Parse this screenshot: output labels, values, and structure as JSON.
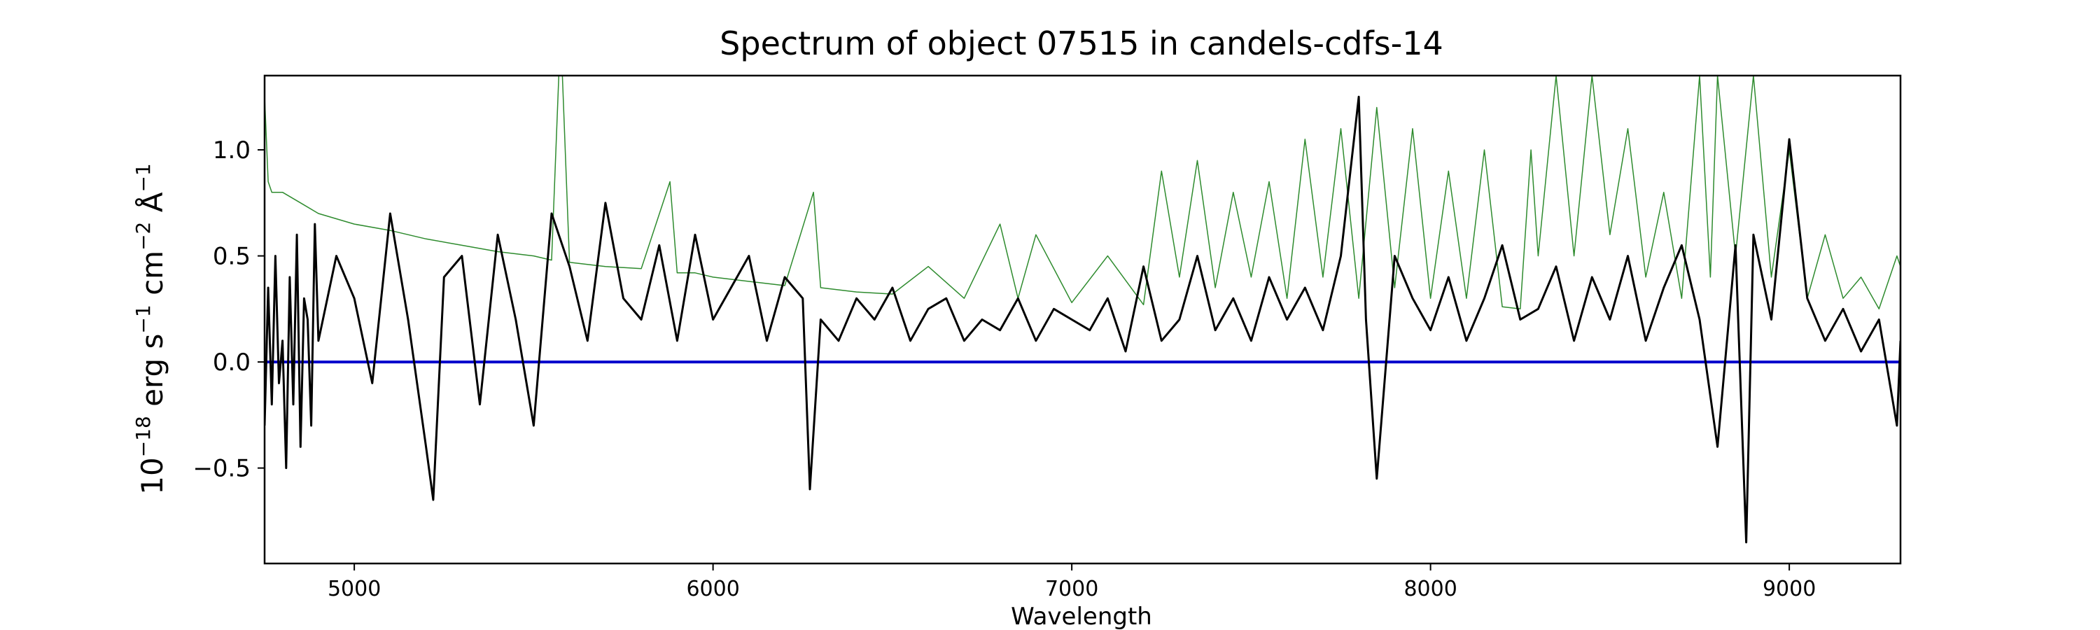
{
  "chart_data": {
    "type": "line",
    "title": "Spectrum of object 07515 in candels-cdfs-14",
    "xlabel": "Wavelength",
    "ylabel": {
      "prefix": "10",
      "prefix_sup": "−18",
      "erg": " erg s",
      "s_sup": "−1",
      "cm": " cm",
      "cm_sup": "−2",
      "ang": " Å",
      "ang_sup": "−1"
    },
    "xlim": [
      4750,
      9310
    ],
    "ylim": [
      -0.95,
      1.35
    ],
    "xticks": [
      5000,
      6000,
      7000,
      8000,
      9000
    ],
    "yticks": [
      -0.5,
      0.0,
      0.5,
      1.0
    ],
    "ytick_labels": [
      "−0.5",
      "0.0",
      "0.5",
      "1.0"
    ],
    "grid": false,
    "legend": "none",
    "colors": {
      "flux": "#000000",
      "noise": "#2e8b2e",
      "zero": "#0000cc"
    },
    "zero_line": 0.0,
    "series": [
      {
        "role": "flux",
        "x": [
          4750,
          4760,
          4770,
          4780,
          4790,
          4800,
          4810,
          4820,
          4830,
          4840,
          4850,
          4860,
          4870,
          4880,
          4890,
          4900,
          4950,
          5000,
          5050,
          5100,
          5150,
          5200,
          5220,
          5250,
          5300,
          5350,
          5400,
          5450,
          5500,
          5550,
          5600,
          5650,
          5700,
          5750,
          5800,
          5850,
          5900,
          5950,
          6000,
          6050,
          6100,
          6150,
          6200,
          6250,
          6270,
          6300,
          6350,
          6400,
          6450,
          6500,
          6550,
          6600,
          6650,
          6700,
          6750,
          6800,
          6850,
          6900,
          6950,
          7000,
          7050,
          7100,
          7150,
          7200,
          7250,
          7300,
          7350,
          7400,
          7450,
          7500,
          7550,
          7600,
          7650,
          7700,
          7750,
          7800,
          7820,
          7850,
          7900,
          7950,
          8000,
          8050,
          8100,
          8150,
          8200,
          8250,
          8300,
          8350,
          8400,
          8450,
          8500,
          8550,
          8600,
          8650,
          8700,
          8750,
          8800,
          8850,
          8880,
          8900,
          8950,
          9000,
          9050,
          9100,
          9150,
          9200,
          9250,
          9300,
          9310
        ],
        "y": [
          -0.3,
          0.35,
          -0.2,
          0.5,
          -0.1,
          0.1,
          -0.5,
          0.4,
          -0.2,
          0.6,
          -0.4,
          0.3,
          0.2,
          -0.3,
          0.65,
          0.1,
          0.5,
          0.3,
          -0.1,
          0.7,
          0.2,
          -0.4,
          -0.65,
          0.4,
          0.5,
          -0.2,
          0.6,
          0.2,
          -0.3,
          0.7,
          0.45,
          0.1,
          0.75,
          0.3,
          0.2,
          0.55,
          0.1,
          0.6,
          0.2,
          0.35,
          0.5,
          0.1,
          0.4,
          0.3,
          -0.6,
          0.2,
          0.1,
          0.3,
          0.2,
          0.35,
          0.1,
          0.25,
          0.3,
          0.1,
          0.2,
          0.15,
          0.3,
          0.1,
          0.25,
          0.2,
          0.15,
          0.3,
          0.05,
          0.45,
          0.1,
          0.2,
          0.5,
          0.15,
          0.3,
          0.1,
          0.4,
          0.2,
          0.35,
          0.15,
          0.5,
          1.25,
          0.2,
          -0.55,
          0.5,
          0.3,
          0.15,
          0.4,
          0.1,
          0.3,
          0.55,
          0.2,
          0.25,
          0.45,
          0.1,
          0.4,
          0.2,
          0.5,
          0.1,
          0.35,
          0.55,
          0.2,
          -0.4,
          0.55,
          -0.85,
          0.6,
          0.2,
          1.05,
          0.3,
          0.1,
          0.25,
          0.05,
          0.2,
          -0.3,
          0.1
        ]
      },
      {
        "role": "noise",
        "x": [
          4750,
          4760,
          4770,
          4800,
          4850,
          4900,
          5000,
          5100,
          5200,
          5300,
          5400,
          5500,
          5550,
          5570,
          5580,
          5600,
          5700,
          5800,
          5880,
          5900,
          5950,
          6000,
          6100,
          6200,
          6280,
          6300,
          6400,
          6500,
          6600,
          6700,
          6800,
          6850,
          6900,
          7000,
          7100,
          7200,
          7250,
          7300,
          7350,
          7400,
          7450,
          7500,
          7550,
          7600,
          7650,
          7700,
          7750,
          7800,
          7850,
          7900,
          7950,
          8000,
          8050,
          8100,
          8150,
          8200,
          8250,
          8280,
          8300,
          8350,
          8400,
          8450,
          8500,
          8550,
          8600,
          8650,
          8700,
          8750,
          8780,
          8800,
          8850,
          8900,
          8950,
          9000,
          9050,
          9100,
          9150,
          9200,
          9250,
          9300,
          9310
        ],
        "y": [
          1.25,
          0.85,
          0.8,
          0.8,
          0.75,
          0.7,
          0.65,
          0.62,
          0.58,
          0.55,
          0.52,
          0.5,
          0.48,
          1.35,
          1.35,
          0.47,
          0.45,
          0.44,
          0.85,
          0.42,
          0.42,
          0.4,
          0.38,
          0.36,
          0.8,
          0.35,
          0.33,
          0.32,
          0.45,
          0.3,
          0.65,
          0.3,
          0.6,
          0.28,
          0.5,
          0.27,
          0.9,
          0.4,
          0.95,
          0.35,
          0.8,
          0.4,
          0.85,
          0.3,
          1.05,
          0.4,
          1.1,
          0.3,
          1.2,
          0.35,
          1.1,
          0.3,
          0.9,
          0.3,
          1.0,
          0.26,
          0.25,
          1.0,
          0.5,
          1.35,
          0.5,
          1.35,
          0.6,
          1.1,
          0.4,
          0.8,
          0.3,
          1.35,
          0.4,
          1.35,
          0.5,
          1.35,
          0.4,
          1.0,
          0.3,
          0.6,
          0.3,
          0.4,
          0.25,
          0.5,
          0.45
        ]
      }
    ]
  }
}
